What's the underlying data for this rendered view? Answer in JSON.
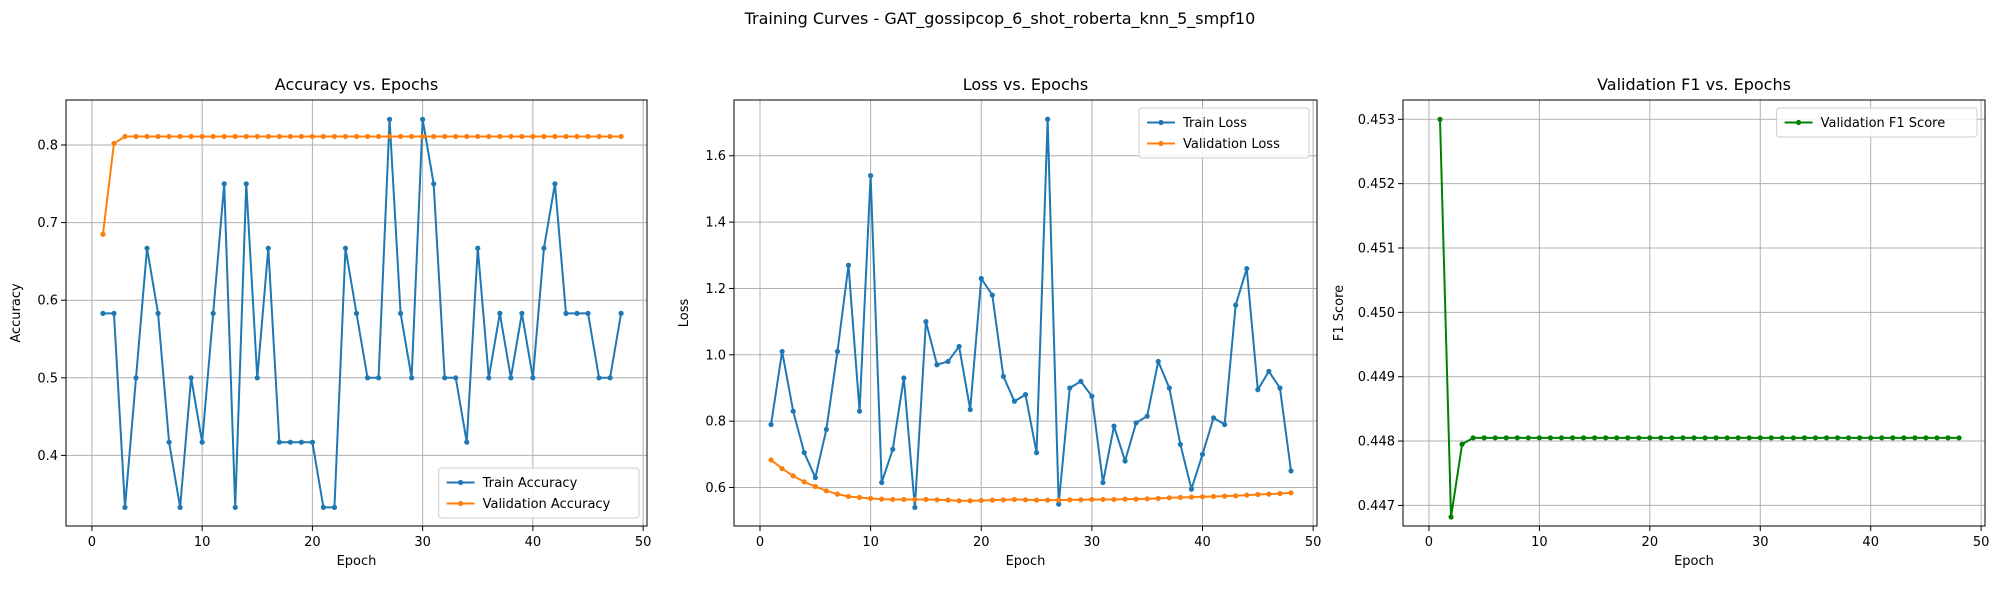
{
  "suptitle": "Training Curves - GAT_gossipcop_6_shot_roberta_knn_5_smpf10",
  "colors": {
    "blue": "#1f77b4",
    "orange": "#ff7f0e",
    "green": "#008000",
    "grid": "#b0b0b0"
  },
  "chart_data": [
    {
      "type": "line",
      "title": "Accuracy vs. Epochs",
      "xlabel": "Epoch",
      "ylabel": "Accuracy",
      "xlim": [
        -2.35,
        50.35
      ],
      "ylim": [
        0.309,
        0.858
      ],
      "xticks": [
        0,
        10,
        20,
        30,
        40,
        50
      ],
      "yticks": [
        0.4,
        0.5,
        0.6,
        0.7,
        0.8
      ],
      "ytick_labels": [
        "0.4",
        "0.5",
        "0.6",
        "0.7",
        "0.8"
      ],
      "grid": true,
      "legend_position": "lower-right",
      "x": [
        1,
        2,
        3,
        4,
        5,
        6,
        7,
        8,
        9,
        10,
        11,
        12,
        13,
        14,
        15,
        16,
        17,
        18,
        19,
        20,
        21,
        22,
        23,
        24,
        25,
        26,
        27,
        28,
        29,
        30,
        31,
        32,
        33,
        34,
        35,
        36,
        37,
        38,
        39,
        40,
        41,
        42,
        43,
        44,
        45,
        46,
        47,
        48
      ],
      "series": [
        {
          "name": "Train Accuracy",
          "color": "#1f77b4",
          "values": [
            0.583,
            0.583,
            0.333,
            0.5,
            0.667,
            0.583,
            0.417,
            0.333,
            0.5,
            0.417,
            0.583,
            0.75,
            0.333,
            0.75,
            0.5,
            0.667,
            0.417,
            0.417,
            0.417,
            0.417,
            0.333,
            0.333,
            0.667,
            0.583,
            0.5,
            0.5,
            0.833,
            0.583,
            0.5,
            0.833,
            0.75,
            0.5,
            0.5,
            0.417,
            0.667,
            0.5,
            0.583,
            0.5,
            0.583,
            0.5,
            0.667,
            0.75,
            0.583,
            0.583,
            0.583,
            0.5,
            0.5,
            0.583
          ]
        },
        {
          "name": "Validation Accuracy",
          "color": "#ff7f0e",
          "values": [
            0.685,
            0.802,
            0.811,
            0.811,
            0.811,
            0.811,
            0.811,
            0.811,
            0.811,
            0.811,
            0.811,
            0.811,
            0.811,
            0.811,
            0.811,
            0.811,
            0.811,
            0.811,
            0.811,
            0.811,
            0.811,
            0.811,
            0.811,
            0.811,
            0.811,
            0.811,
            0.811,
            0.811,
            0.811,
            0.811,
            0.811,
            0.811,
            0.811,
            0.811,
            0.811,
            0.811,
            0.811,
            0.811,
            0.811,
            0.811,
            0.811,
            0.811,
            0.811,
            0.811,
            0.811,
            0.811,
            0.811,
            0.811
          ]
        }
      ]
    },
    {
      "type": "line",
      "title": "Loss vs. Epochs",
      "xlabel": "Epoch",
      "ylabel": "Loss",
      "xlim": [
        -2.35,
        50.35
      ],
      "ylim": [
        0.484,
        1.768
      ],
      "xticks": [
        0,
        10,
        20,
        30,
        40,
        50
      ],
      "yticks": [
        0.6,
        0.8,
        1.0,
        1.2,
        1.4,
        1.6
      ],
      "ytick_labels": [
        "0.6",
        "0.8",
        "1.0",
        "1.2",
        "1.4",
        "1.6"
      ],
      "grid": true,
      "legend_position": "upper-right",
      "x": [
        1,
        2,
        3,
        4,
        5,
        6,
        7,
        8,
        9,
        10,
        11,
        12,
        13,
        14,
        15,
        16,
        17,
        18,
        19,
        20,
        21,
        22,
        23,
        24,
        25,
        26,
        27,
        28,
        29,
        30,
        31,
        32,
        33,
        34,
        35,
        36,
        37,
        38,
        39,
        40,
        41,
        42,
        43,
        44,
        45,
        46,
        47,
        48
      ],
      "series": [
        {
          "name": "Train Loss",
          "color": "#1f77b4",
          "values": [
            0.79,
            1.01,
            0.83,
            0.705,
            0.63,
            0.775,
            1.01,
            1.27,
            0.83,
            1.54,
            0.615,
            0.715,
            0.93,
            0.54,
            1.1,
            0.97,
            0.98,
            1.025,
            0.835,
            1.23,
            1.18,
            0.935,
            0.86,
            0.88,
            0.705,
            1.71,
            0.55,
            0.9,
            0.92,
            0.875,
            0.615,
            0.785,
            0.68,
            0.795,
            0.815,
            0.98,
            0.9,
            0.73,
            0.595,
            0.7,
            0.81,
            0.79,
            1.15,
            1.26,
            0.895,
            0.95,
            0.9,
            0.65
          ]
        },
        {
          "name": "Validation Loss",
          "color": "#ff7f0e",
          "values": [
            0.683,
            0.657,
            0.635,
            0.617,
            0.603,
            0.59,
            0.58,
            0.573,
            0.57,
            0.567,
            0.565,
            0.564,
            0.564,
            0.564,
            0.564,
            0.563,
            0.562,
            0.56,
            0.56,
            0.561,
            0.562,
            0.563,
            0.564,
            0.563,
            0.562,
            0.562,
            0.562,
            0.563,
            0.563,
            0.564,
            0.564,
            0.564,
            0.565,
            0.565,
            0.566,
            0.567,
            0.569,
            0.57,
            0.571,
            0.572,
            0.573,
            0.574,
            0.575,
            0.577,
            0.579,
            0.58,
            0.582,
            0.584
          ]
        }
      ]
    },
    {
      "type": "line",
      "title": "Validation F1 vs. Epochs",
      "xlabel": "Epoch",
      "ylabel": "F1 Score",
      "xlim": [
        -2.35,
        50.35
      ],
      "ylim": [
        0.44668,
        0.4533
      ],
      "xticks": [
        0,
        10,
        20,
        30,
        40,
        50
      ],
      "yticks": [
        0.447,
        0.448,
        0.449,
        0.45,
        0.451,
        0.452,
        0.453
      ],
      "ytick_labels": [
        "0.447",
        "0.448",
        "0.449",
        "0.450",
        "0.451",
        "0.452",
        "0.453"
      ],
      "grid": true,
      "legend_position": "upper-right",
      "x": [
        1,
        2,
        3,
        4,
        5,
        6,
        7,
        8,
        9,
        10,
        11,
        12,
        13,
        14,
        15,
        16,
        17,
        18,
        19,
        20,
        21,
        22,
        23,
        24,
        25,
        26,
        27,
        28,
        29,
        30,
        31,
        32,
        33,
        34,
        35,
        36,
        37,
        38,
        39,
        40,
        41,
        42,
        43,
        44,
        45,
        46,
        47,
        48
      ],
      "series": [
        {
          "name": "Validation F1 Score",
          "color": "#008000",
          "values": [
            0.453,
            0.44682,
            0.44795,
            0.44805,
            0.44805,
            0.44805,
            0.44805,
            0.44805,
            0.44805,
            0.44805,
            0.44805,
            0.44805,
            0.44805,
            0.44805,
            0.44805,
            0.44805,
            0.44805,
            0.44805,
            0.44805,
            0.44805,
            0.44805,
            0.44805,
            0.44805,
            0.44805,
            0.44805,
            0.44805,
            0.44805,
            0.44805,
            0.44805,
            0.44805,
            0.44805,
            0.44805,
            0.44805,
            0.44805,
            0.44805,
            0.44805,
            0.44805,
            0.44805,
            0.44805,
            0.44805,
            0.44805,
            0.44805,
            0.44805,
            0.44805,
            0.44805,
            0.44805,
            0.44805,
            0.44805
          ]
        }
      ]
    }
  ]
}
